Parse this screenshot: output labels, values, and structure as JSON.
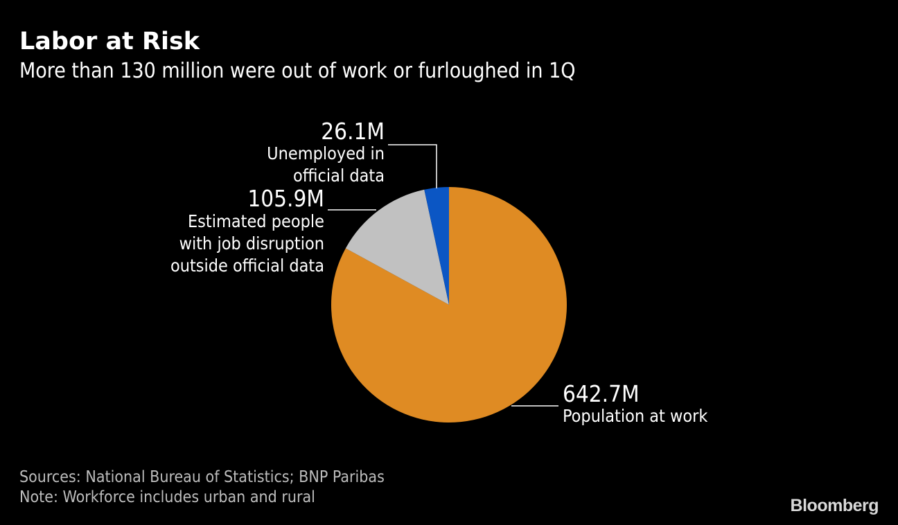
{
  "title": "Labor at Risk",
  "subtitle": "More than 130 million were out of work or furloughed in 1Q",
  "chart_data": {
    "type": "pie",
    "slices": [
      {
        "value_label": "642.7M",
        "label": "Population at work",
        "value": 642.7,
        "color": "#df8b23"
      },
      {
        "value_label": "105.9M",
        "label": "Estimated people with job disruption outside official data",
        "label_lines": [
          "Estimated people",
          "with job disruption",
          "outside official data"
        ],
        "value": 105.9,
        "color": "#c1c1c1"
      },
      {
        "value_label": "26.1M",
        "label": "Unemployed in official data",
        "label_lines": [
          "Unemployed in",
          "official data"
        ],
        "value": 26.1,
        "color": "#0b56c4"
      }
    ]
  },
  "footer": {
    "sources": "Sources: National Bureau of Statistics; BNP Paribas",
    "note": "Note: Workforce includes urban and rural",
    "brand": "Bloomberg"
  }
}
